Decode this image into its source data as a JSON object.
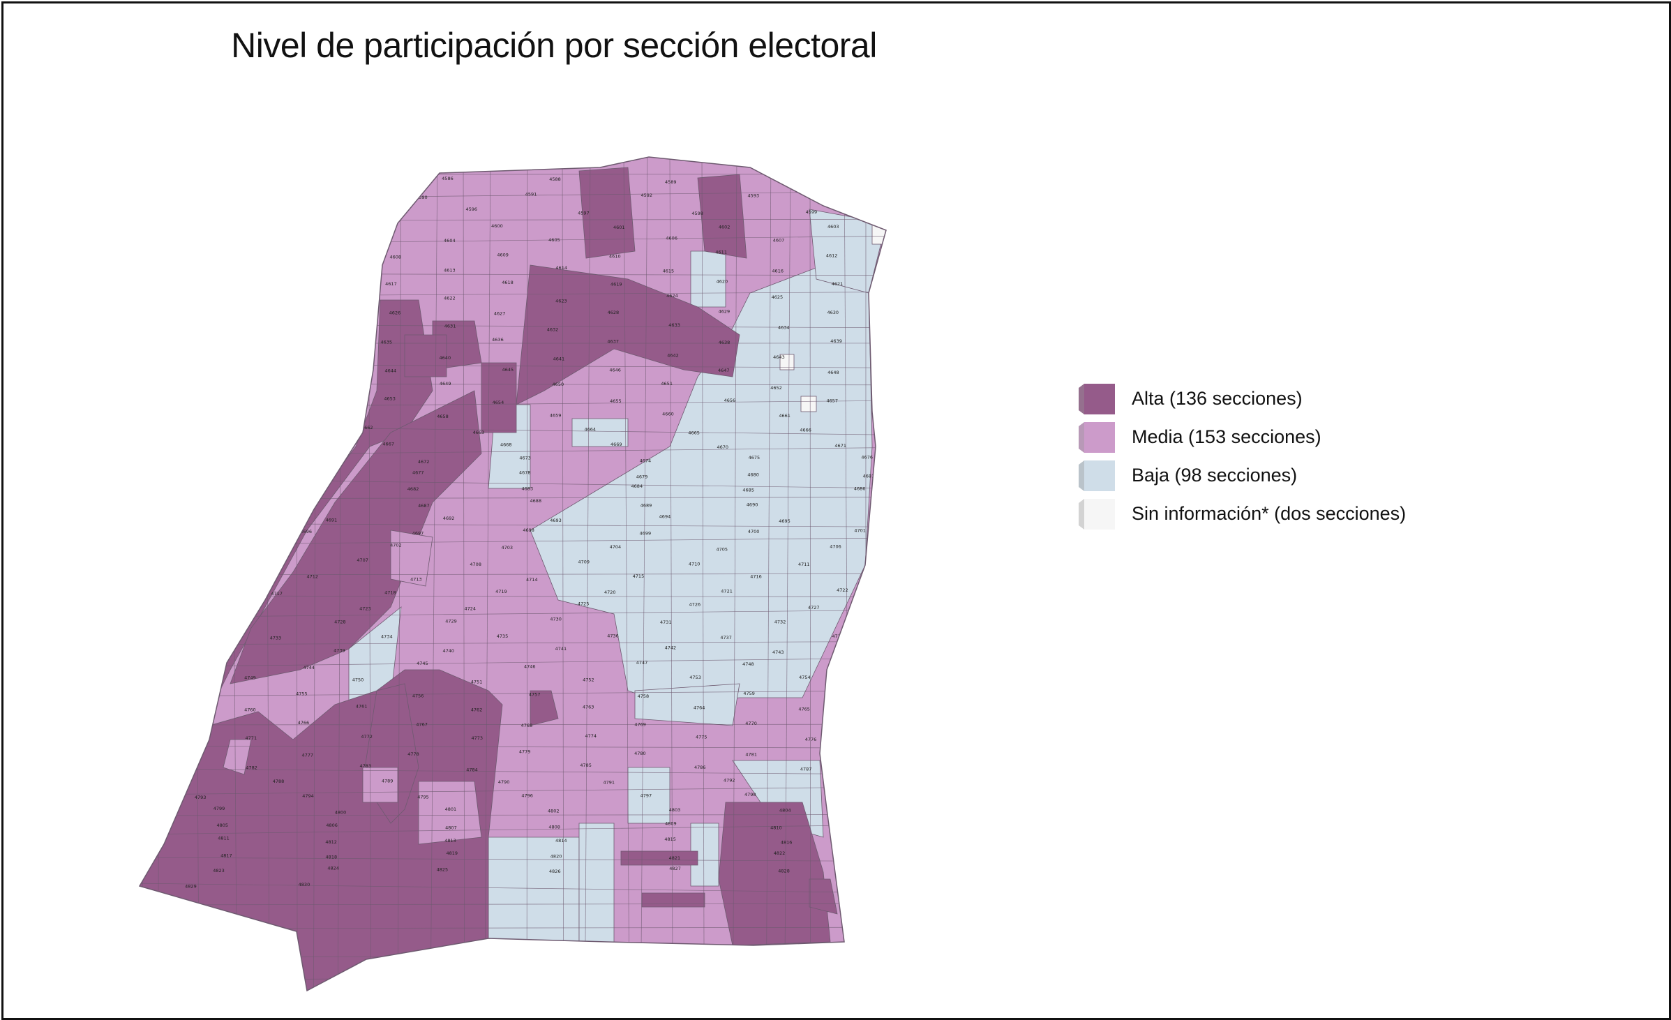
{
  "map": {
    "title": "Nivel de participación por sección electoral",
    "colors": {
      "alta": "#955B8A",
      "media": "#CC9BCA",
      "baja": "#CFDDE8",
      "sin_info": "#F6F6F6",
      "border": "#6E5A70"
    },
    "sections_labels_visible": [
      "4586",
      "4588",
      "4589",
      "4590",
      "4591",
      "4592",
      "4593",
      "4596",
      "4597",
      "4598",
      "4599",
      "4600",
      "4601",
      "4602",
      "4603",
      "4604",
      "4605",
      "4606",
      "4607",
      "4608",
      "4609",
      "4610",
      "4611",
      "4612",
      "4613",
      "4614",
      "4615",
      "4616",
      "4617",
      "4618",
      "4619",
      "4620",
      "4621",
      "4622",
      "4623",
      "4624",
      "4625",
      "4626",
      "4627",
      "4628",
      "4629",
      "4630",
      "4631",
      "4632",
      "4633",
      "4634",
      "4635",
      "4636",
      "4637",
      "4638",
      "4639",
      "4640",
      "4641",
      "4642",
      "4643",
      "4644",
      "4645",
      "4646",
      "4647",
      "4648",
      "4649",
      "4650",
      "4651",
      "4652",
      "4653",
      "4654",
      "4655",
      "4656",
      "4657",
      "4658",
      "4659",
      "4660",
      "4661",
      "4662",
      "4663",
      "4664",
      "4665",
      "4666",
      "4667",
      "4668",
      "4669",
      "4670",
      "4671",
      "4672",
      "4673",
      "4674",
      "4675",
      "4676",
      "4677",
      "4678",
      "4679",
      "4680",
      "4681",
      "4682",
      "4683",
      "4684",
      "4685",
      "4686",
      "4687",
      "4688",
      "4689",
      "4690",
      "4691",
      "4692",
      "4693",
      "4694",
      "4695",
      "4696",
      "4697",
      "4698",
      "4699",
      "4700",
      "4701",
      "4702",
      "4703",
      "4704",
      "4705",
      "4706",
      "4707",
      "4708",
      "4709",
      "4710",
      "4711",
      "4712",
      "4713",
      "4714",
      "4715",
      "4716",
      "4717",
      "4718",
      "4719",
      "4720",
      "4721",
      "4722",
      "4723",
      "4724",
      "4725",
      "4726",
      "4727",
      "4728",
      "4729",
      "4730",
      "4731",
      "4732",
      "4733",
      "4734",
      "4735",
      "4736",
      "4737",
      "4738",
      "4739",
      "4740",
      "4741",
      "4742",
      "4743",
      "4744",
      "4745",
      "4746",
      "4747",
      "4748",
      "4749",
      "4750",
      "4751",
      "4752",
      "4753",
      "4754",
      "4755",
      "4756",
      "4757",
      "4758",
      "4759",
      "4760",
      "4761",
      "4762",
      "4763",
      "4764",
      "4765",
      "4766",
      "4767",
      "4768",
      "4769",
      "4770",
      "4771",
      "4772",
      "4773",
      "4774",
      "4775",
      "4776",
      "4777",
      "4778",
      "4779",
      "4780",
      "4781",
      "4782",
      "4783",
      "4784",
      "4785",
      "4786",
      "4787",
      "4788",
      "4789",
      "4790",
      "4791",
      "4792",
      "4793",
      "4794",
      "4795",
      "4796",
      "4797",
      "4798",
      "4799",
      "4800",
      "4801",
      "4802",
      "4803",
      "4804",
      "4805",
      "4806",
      "4807",
      "4808",
      "4809",
      "4810",
      "4811",
      "4812",
      "4813",
      "4814",
      "4815",
      "4816",
      "4817",
      "4818",
      "4819",
      "4820",
      "4821",
      "4822",
      "4823",
      "4824",
      "4825",
      "4826",
      "4827",
      "4828",
      "4829",
      "4830"
    ]
  },
  "legend": {
    "items": [
      {
        "key": "alta",
        "label": "Alta (136 secciones)"
      },
      {
        "key": "media",
        "label": "Media (153 secciones)"
      },
      {
        "key": "baja",
        "label": "Baja (98 secciones)"
      },
      {
        "key": "sin_info",
        "label": "Sin información* (dos secciones)"
      }
    ]
  }
}
